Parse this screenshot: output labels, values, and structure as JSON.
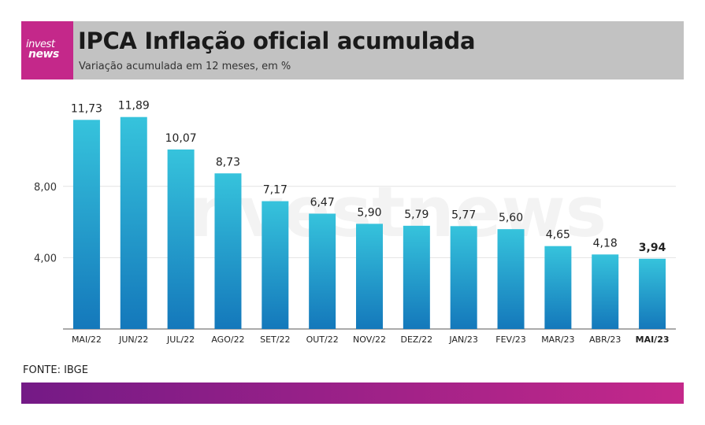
{
  "header": {
    "logo_line1": "invest",
    "logo_line2": "news",
    "title": "IPCA Inflação oficial acumulada",
    "subtitle": "Variação acumulada em 12 meses, em %"
  },
  "source": "FONTE: IBGE",
  "watermark": "investnews",
  "colors": {
    "header_bg": "#c2c2c2",
    "logo_bg": "#c4288a",
    "bar_top": "#36c3dc",
    "bar_bottom": "#1478bb",
    "footer_left": "#741a86",
    "footer_right": "#c4288a"
  },
  "chart_data": {
    "type": "bar",
    "categories": [
      "MAI/22",
      "JUN/22",
      "JUL/22",
      "AGO/22",
      "SET/22",
      "OUT/22",
      "NOV/22",
      "DEZ/22",
      "JAN/23",
      "FEV/23",
      "MAR/23",
      "ABR/23",
      "MAI/23"
    ],
    "values": [
      11.73,
      11.89,
      10.07,
      8.73,
      7.17,
      6.47,
      5.9,
      5.79,
      5.77,
      5.6,
      4.65,
      4.18,
      3.94
    ],
    "value_labels": [
      "11,73",
      "11,89",
      "10,07",
      "8,73",
      "7,17",
      "6,47",
      "5,90",
      "5,79",
      "5,77",
      "5,60",
      "4,65",
      "4,18",
      "3,94"
    ],
    "highlight_index": 12,
    "yticks": [
      4,
      8
    ],
    "ytick_labels": [
      "4,00",
      "8,00"
    ],
    "ylim": [
      0,
      12.6
    ],
    "grid": true,
    "legend": "none"
  }
}
